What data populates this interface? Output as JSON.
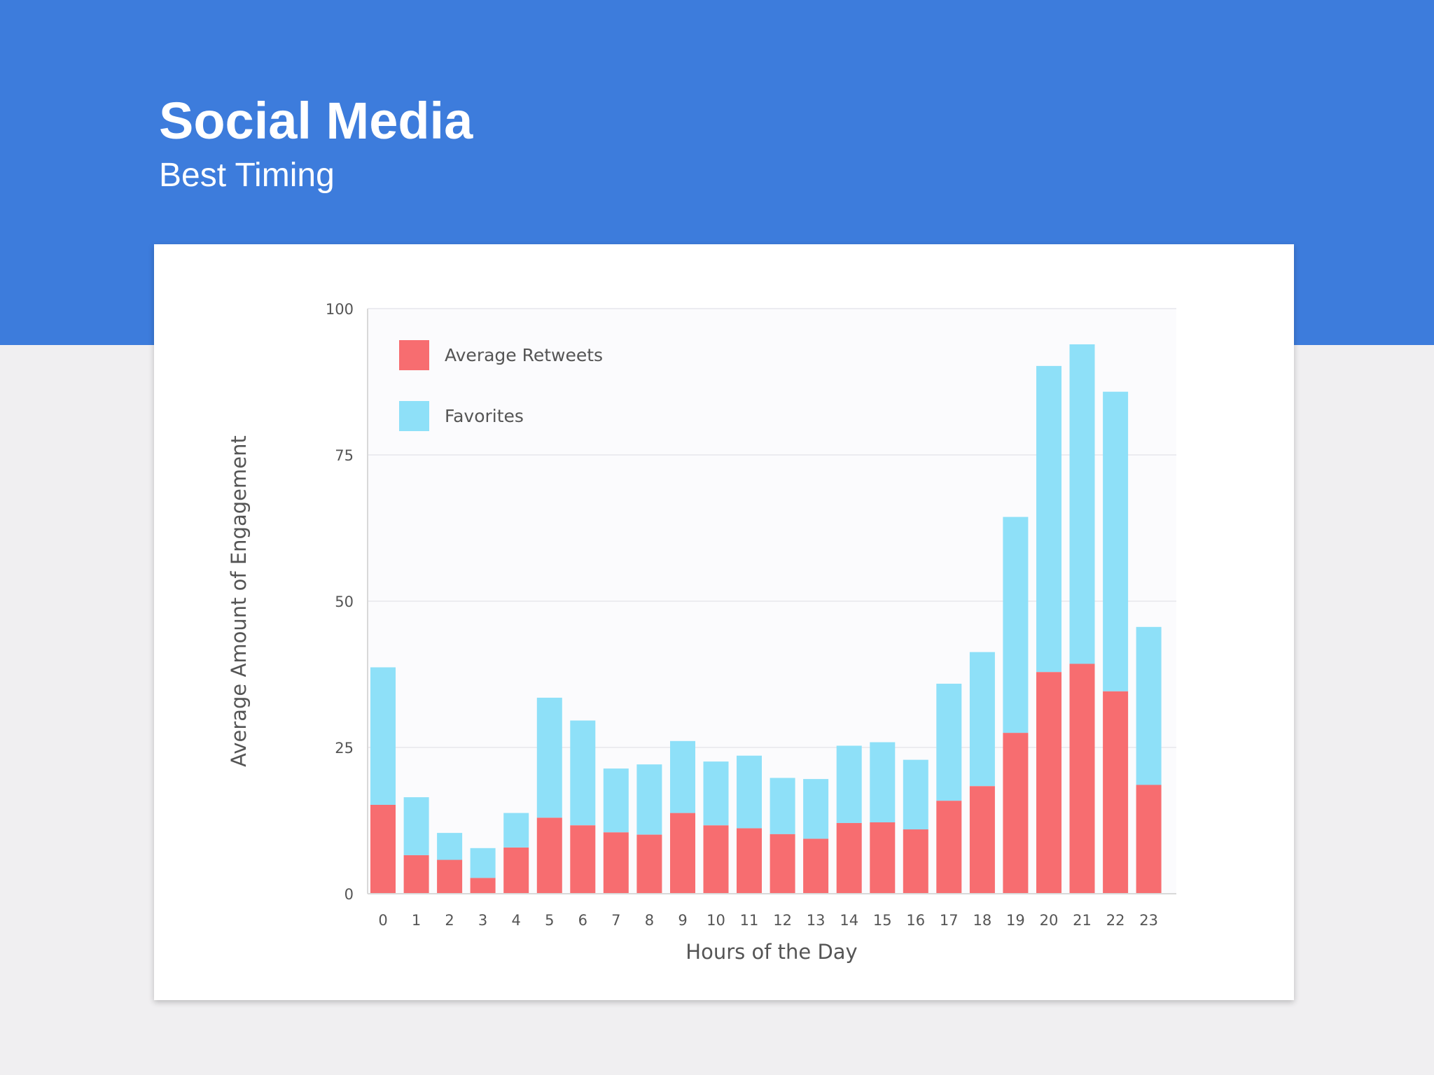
{
  "header": {
    "title": "Social Media",
    "subtitle": "Best Timing"
  },
  "colors": {
    "header_band": "#3d7cdc",
    "page_background": "#f0eff1",
    "card_background": "#ffffff",
    "retweets": "#f76d70",
    "favorites": "#8ee0f8"
  },
  "chart_data": {
    "type": "bar",
    "stacked": true,
    "xlabel": "Hours of the Day",
    "ylabel": "Average Amount of Engagement",
    "ylim": [
      0,
      100
    ],
    "yticks": [
      "0",
      "25",
      "50",
      "75",
      "100"
    ],
    "categories": [
      "0",
      "1",
      "2",
      "3",
      "4",
      "5",
      "6",
      "7",
      "8",
      "9",
      "10",
      "11",
      "12",
      "13",
      "14",
      "15",
      "16",
      "17",
      "18",
      "19",
      "20",
      "21",
      "22",
      "23"
    ],
    "legend_position": "top-left",
    "grid": true,
    "series": [
      {
        "name": "Average Retweets",
        "color": "#f76d70",
        "values": [
          15.2,
          6.6,
          5.8,
          2.7,
          7.9,
          13.0,
          11.7,
          10.5,
          10.1,
          13.8,
          11.7,
          11.2,
          10.2,
          9.4,
          12.1,
          12.2,
          11.0,
          15.9,
          18.4,
          27.5,
          37.9,
          39.3,
          34.6,
          18.6
        ]
      },
      {
        "name": "Favorites",
        "color": "#8ee0f8",
        "values": [
          23.5,
          9.9,
          4.6,
          5.1,
          5.9,
          20.5,
          17.9,
          10.9,
          12.0,
          12.3,
          10.9,
          12.4,
          9.6,
          10.2,
          13.2,
          13.7,
          11.9,
          20.0,
          22.9,
          36.9,
          52.3,
          54.6,
          51.2,
          27.0
        ]
      }
    ]
  }
}
